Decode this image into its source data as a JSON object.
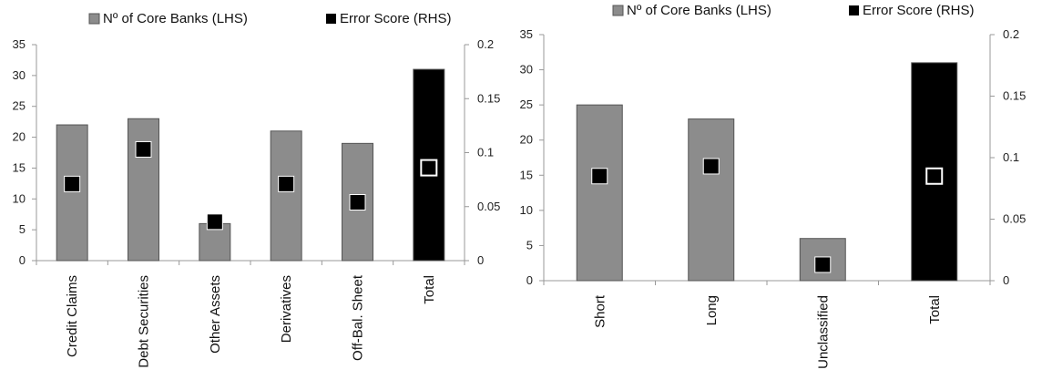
{
  "chart_data": [
    {
      "type": "bar",
      "title": "",
      "xlabel": "",
      "ylabel": "",
      "legend_placement": "top",
      "grid": false,
      "categories": [
        "Credit Claims",
        "Debt Securities",
        "Other Assets",
        "Derivatives",
        "Off-Bal. Sheet",
        "Total"
      ],
      "ylim": [
        0,
        35
      ],
      "y2lim": [
        0,
        0.2
      ],
      "y_ticks": [
        "0",
        "5",
        "10",
        "15",
        "20",
        "25",
        "30",
        "35"
      ],
      "y2_ticks": [
        "0",
        "0.05",
        "0.1",
        "0.15",
        "0.2"
      ],
      "series": [
        {
          "name": "Nº of Core Banks (LHS)",
          "axis": "left",
          "marker": "bar",
          "color": "#8c8c8c",
          "values": [
            22,
            23,
            6,
            21,
            19,
            31
          ]
        },
        {
          "name": "Error Score (RHS)",
          "axis": "right",
          "marker": "square",
          "color": "#000000",
          "values": [
            0.071,
            0.103,
            0.036,
            0.071,
            0.054,
            0.086
          ]
        }
      ],
      "highlight_color": "#000000"
    },
    {
      "type": "bar",
      "title": "",
      "xlabel": "",
      "ylabel": "",
      "legend_placement": "top",
      "grid": false,
      "categories": [
        "Short",
        "Long",
        "Unclassified",
        "Total"
      ],
      "ylim": [
        0,
        35
      ],
      "y2lim": [
        0,
        0.2
      ],
      "y_ticks": [
        "0",
        "5",
        "10",
        "15",
        "20",
        "25",
        "30",
        "35"
      ],
      "y2_ticks": [
        "0",
        "0.05",
        "0.1",
        "0.15",
        "0.2"
      ],
      "series": [
        {
          "name": "Nº of Core Banks (LHS)",
          "axis": "left",
          "marker": "bar",
          "color": "#8c8c8c",
          "values": [
            25,
            23,
            6,
            31
          ]
        },
        {
          "name": "Error Score (RHS)",
          "axis": "right",
          "marker": "square",
          "color": "#000000",
          "values": [
            0.085,
            0.093,
            0.013,
            0.085
          ]
        }
      ],
      "highlight_color": "#000000"
    }
  ]
}
